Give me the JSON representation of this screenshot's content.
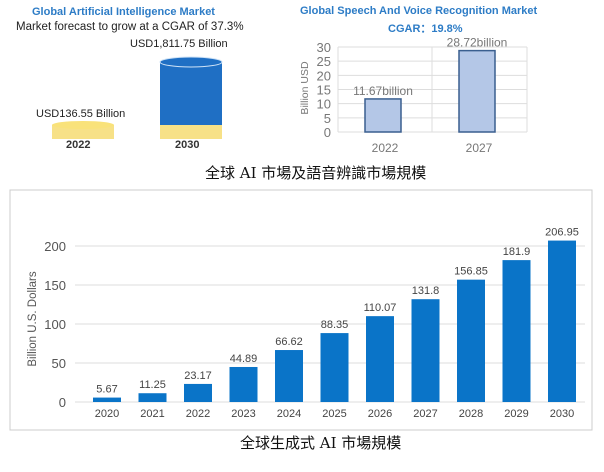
{
  "chart_data": [
    {
      "type": "bar",
      "title": "Global Artificial Intelligence Market",
      "subtitle": "Market forecast to grow at a CGAR of 37.3%",
      "categories": [
        "2022",
        "2030"
      ],
      "values": [
        136.55,
        1811.75
      ],
      "data_labels": [
        "USD136.55 Billion",
        "USD1,811.75 Billion"
      ],
      "colors": {
        "bar_2030": "#1f6fc4",
        "bar_2022": "#f6dc72",
        "title": "#2d7cc6"
      }
    },
    {
      "type": "bar",
      "title": "Global Speech And Voice Recognition Market",
      "subtitle": "CGAR：19.8%",
      "categories": [
        "2022",
        "2027"
      ],
      "values": [
        11.67,
        28.72
      ],
      "data_labels": [
        "11.67billion",
        "28.72billion"
      ],
      "ylabel": "Billion USD",
      "ylim": [
        0,
        30
      ],
      "yticks": [
        0,
        5,
        10,
        15,
        20,
        25,
        30
      ],
      "grid": true,
      "colors": {
        "bar": "#b4c7e7",
        "bar_edge": "#3a5f8f",
        "title": "#2d7cc6"
      }
    },
    {
      "type": "bar",
      "categories": [
        "2020",
        "2021",
        "2022",
        "2023",
        "2024",
        "2025",
        "2026",
        "2027",
        "2028",
        "2029",
        "2030"
      ],
      "values": [
        5.67,
        11.25,
        23.17,
        44.89,
        66.62,
        88.35,
        110.07,
        131.8,
        156.85,
        181.9,
        206.95
      ],
      "ylabel": "Billion U.S. Dollars",
      "ylim": [
        0,
        250
      ],
      "yticks": [
        0,
        50,
        100,
        150,
        200
      ],
      "grid": true,
      "colors": {
        "bar": "#0a74c8"
      }
    }
  ],
  "captions": {
    "top": "全球 AI 市場及語音辨識市場規模",
    "bottom": "全球生成式 AI 市場規模"
  }
}
